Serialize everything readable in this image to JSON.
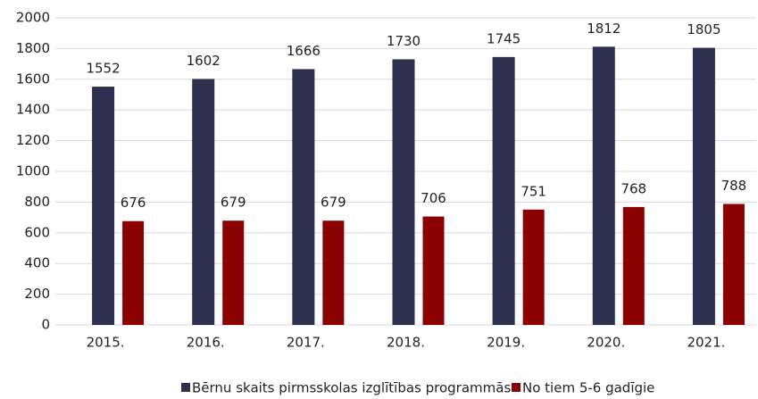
{
  "chart_data": {
    "type": "bar",
    "categories": [
      "2015.",
      "2016.",
      "2017.",
      "2018.",
      "2019.",
      "2020.",
      "2021."
    ],
    "series": [
      {
        "name": "Bērnu skaits pirmsskolas izglītības programmās",
        "color": "#2e3050",
        "values": [
          1552,
          1602,
          1666,
          1730,
          1745,
          1812,
          1805
        ]
      },
      {
        "name": "No tiem 5-6 gadīgie",
        "color": "#8b0000",
        "values": [
          676,
          679,
          679,
          706,
          751,
          768,
          788
        ]
      }
    ],
    "ylim": [
      0,
      2000
    ],
    "yticks": [
      0,
      200,
      400,
      600,
      800,
      1000,
      1200,
      1400,
      1600,
      1800,
      2000
    ],
    "grid": true,
    "legend": "bottom"
  }
}
